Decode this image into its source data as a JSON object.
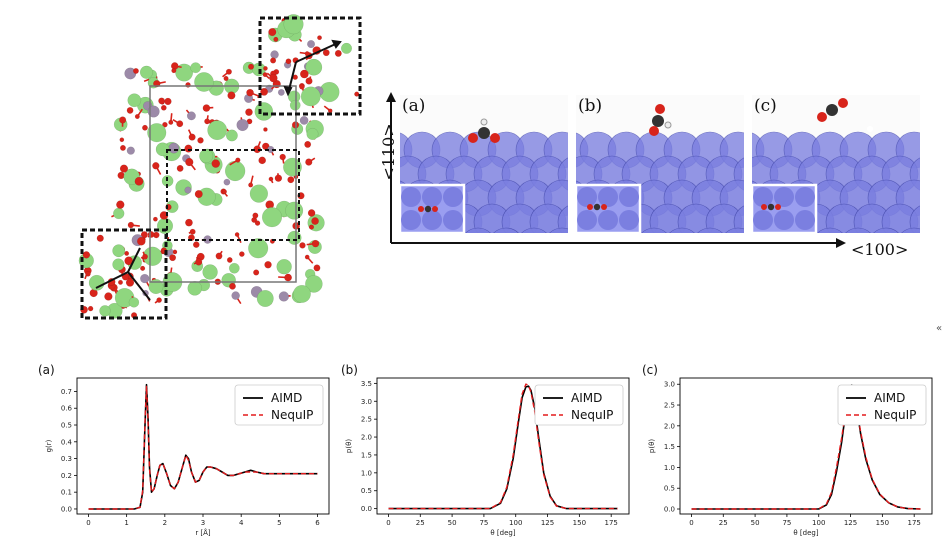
{
  "crystal_panel": {
    "atom_colors": {
      "oxygen": "#d8241b",
      "green": "#8fd67f",
      "purple": "#9c8aa8"
    }
  },
  "surface_panel": {
    "axis_vertical": "<110>",
    "axis_horizontal": "<100>",
    "panels": [
      {
        "label": "(a)",
        "adsorbate": "bent-formate-like"
      },
      {
        "label": "(b)",
        "adsorbate": "tilted-carboxyl"
      },
      {
        "label": "(c)",
        "adsorbate": "linear-CO2"
      }
    ],
    "slab_color": "#7b7fe0"
  },
  "legend": {
    "aimd": "AIMD",
    "nequip": "NequIP"
  },
  "series_colors": {
    "aimd": "#000000",
    "nequip": "#e31a1c"
  },
  "stray_glyph": "«",
  "chart_data": [
    {
      "type": "line",
      "panel_label": "(a)",
      "xlabel": "r [Å]",
      "ylabel": "g(r)",
      "xlim": [
        -0.3,
        6.3
      ],
      "ylim": [
        -0.03,
        0.78
      ],
      "xticks": [
        0,
        1,
        2,
        3,
        4,
        5,
        6
      ],
      "yticks": [
        0.0,
        0.1,
        0.2,
        0.3,
        0.4,
        0.5,
        0.6,
        0.7
      ],
      "ytick_labels": [
        "0.0",
        "0.1",
        "0.2",
        "0.3",
        "0.4",
        "0.5",
        "0.6",
        "0.7"
      ],
      "series": [
        {
          "name": "AIMD",
          "style": "solid",
          "x": [
            0.0,
            1.2,
            1.35,
            1.42,
            1.48,
            1.52,
            1.56,
            1.6,
            1.65,
            1.72,
            1.8,
            1.87,
            1.95,
            2.05,
            2.15,
            2.25,
            2.35,
            2.45,
            2.55,
            2.62,
            2.7,
            2.8,
            2.9,
            3.0,
            3.1,
            3.2,
            3.35,
            3.5,
            3.65,
            3.8,
            3.95,
            4.1,
            4.25,
            4.4,
            4.6,
            4.8,
            5.0,
            5.3,
            5.6,
            6.0
          ],
          "y": [
            0.0,
            0.0,
            0.01,
            0.1,
            0.5,
            0.74,
            0.55,
            0.25,
            0.1,
            0.12,
            0.2,
            0.26,
            0.27,
            0.21,
            0.14,
            0.12,
            0.16,
            0.24,
            0.32,
            0.3,
            0.22,
            0.16,
            0.17,
            0.22,
            0.25,
            0.25,
            0.24,
            0.22,
            0.2,
            0.2,
            0.21,
            0.22,
            0.23,
            0.22,
            0.21,
            0.21,
            0.21,
            0.21,
            0.21,
            0.21
          ]
        },
        {
          "name": "NequIP",
          "style": "dashed",
          "x": [
            0.0,
            1.2,
            1.35,
            1.42,
            1.48,
            1.52,
            1.56,
            1.6,
            1.65,
            1.72,
            1.8,
            1.87,
            1.95,
            2.05,
            2.15,
            2.25,
            2.35,
            2.45,
            2.55,
            2.62,
            2.7,
            2.8,
            2.9,
            3.0,
            3.1,
            3.2,
            3.35,
            3.5,
            3.65,
            3.8,
            3.95,
            4.1,
            4.25,
            4.4,
            4.6,
            4.8,
            5.0,
            5.3,
            5.6,
            6.0
          ],
          "y": [
            0.0,
            0.0,
            0.01,
            0.11,
            0.52,
            0.73,
            0.53,
            0.24,
            0.1,
            0.12,
            0.2,
            0.26,
            0.27,
            0.21,
            0.14,
            0.12,
            0.16,
            0.24,
            0.32,
            0.29,
            0.22,
            0.16,
            0.17,
            0.22,
            0.25,
            0.25,
            0.24,
            0.22,
            0.2,
            0.2,
            0.21,
            0.22,
            0.22,
            0.22,
            0.21,
            0.21,
            0.21,
            0.21,
            0.21,
            0.21
          ]
        }
      ]
    },
    {
      "type": "line",
      "panel_label": "(b)",
      "xlabel": "θ [deg]",
      "ylabel": "p(θ)",
      "xlim": [
        -9,
        189
      ],
      "ylim": [
        -0.15,
        3.65
      ],
      "xticks": [
        0,
        25,
        50,
        75,
        100,
        125,
        150,
        175
      ],
      "yticks": [
        0.0,
        0.5,
        1.0,
        1.5,
        2.0,
        2.5,
        3.0,
        3.5
      ],
      "ytick_labels": [
        "0.0",
        "0.5",
        "1.0",
        "1.5",
        "2.0",
        "2.5",
        "3.0",
        "3.5"
      ],
      "series": [
        {
          "name": "AIMD",
          "style": "solid",
          "x": [
            0,
            80,
            88,
            93,
            98,
            102,
            105,
            108,
            110,
            112,
            115,
            118,
            122,
            127,
            132,
            140,
            180
          ],
          "y": [
            0,
            0.0,
            0.15,
            0.55,
            1.4,
            2.4,
            3.1,
            3.4,
            3.42,
            3.3,
            2.8,
            2.0,
            1.0,
            0.35,
            0.08,
            0.0,
            0
          ]
        },
        {
          "name": "NequIP",
          "style": "dashed",
          "x": [
            0,
            80,
            88,
            93,
            98,
            102,
            105,
            108,
            110,
            112,
            115,
            118,
            122,
            127,
            132,
            140,
            180
          ],
          "y": [
            0,
            0.0,
            0.17,
            0.6,
            1.5,
            2.5,
            3.2,
            3.48,
            3.45,
            3.25,
            2.7,
            1.9,
            0.95,
            0.33,
            0.07,
            0.0,
            0
          ]
        }
      ]
    },
    {
      "type": "line",
      "panel_label": "(c)",
      "xlabel": "θ [deg]",
      "ylabel": "p(θ)",
      "xlim": [
        -9,
        189
      ],
      "ylim": [
        -0.12,
        3.15
      ],
      "xticks": [
        0,
        25,
        50,
        75,
        100,
        125,
        150,
        175
      ],
      "yticks": [
        0.0,
        0.5,
        1.0,
        1.5,
        2.0,
        2.5,
        3.0
      ],
      "ytick_labels": [
        "0.0",
        "0.5",
        "1.0",
        "1.5",
        "2.0",
        "2.5",
        "3.0"
      ],
      "series": [
        {
          "name": "AIMD",
          "style": "solid",
          "x": [
            0,
            100,
            106,
            110,
            114,
            118,
            121,
            124,
            126,
            128,
            130,
            133,
            137,
            142,
            148,
            155,
            162,
            170,
            180
          ],
          "y": [
            0,
            0.0,
            0.1,
            0.35,
            0.9,
            1.6,
            2.3,
            2.8,
            2.98,
            2.85,
            2.4,
            1.8,
            1.2,
            0.7,
            0.35,
            0.15,
            0.05,
            0.01,
            0
          ]
        },
        {
          "name": "NequIP",
          "style": "dashed",
          "x": [
            0,
            100,
            106,
            110,
            114,
            118,
            121,
            124,
            126,
            128,
            130,
            133,
            137,
            142,
            148,
            155,
            162,
            170,
            180
          ],
          "y": [
            0,
            0.0,
            0.12,
            0.4,
            1.0,
            1.7,
            2.35,
            2.72,
            2.82,
            2.75,
            2.4,
            1.85,
            1.25,
            0.72,
            0.36,
            0.15,
            0.05,
            0.01,
            0
          ]
        }
      ]
    }
  ]
}
